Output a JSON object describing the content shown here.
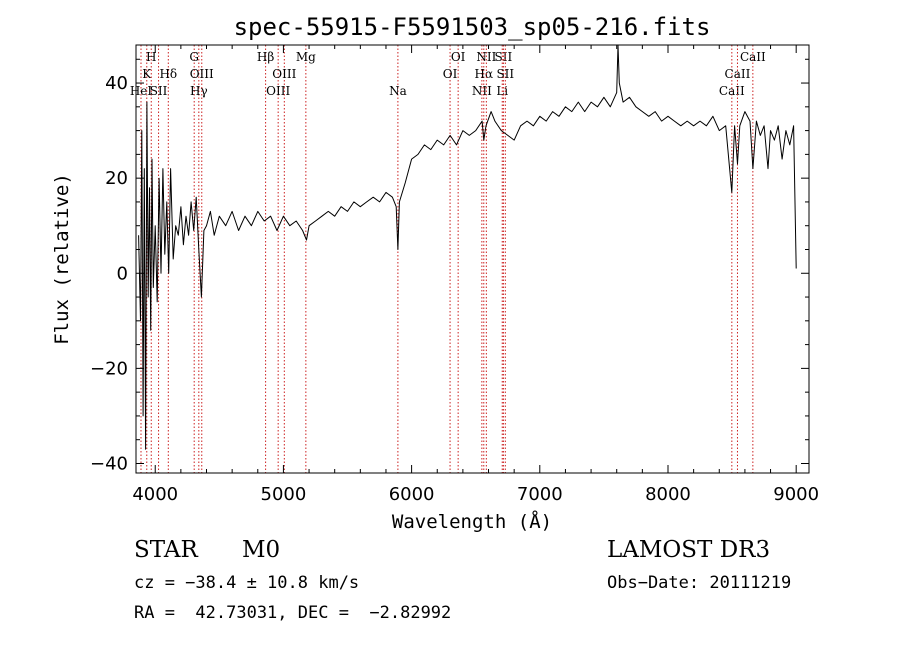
{
  "chart_data": {
    "type": "line",
    "title": "spec-55915-F5591503_sp05-216.fits",
    "xlabel": "Wavelength (Å)",
    "ylabel": "Flux (relative)",
    "xlim": [
      3850,
      9100
    ],
    "ylim": [
      -42,
      48
    ],
    "x_ticks": [
      4000,
      5000,
      6000,
      7000,
      8000,
      9000
    ],
    "y_ticks": [
      -40,
      -20,
      0,
      20,
      40
    ],
    "line_color": "#cc2222",
    "series": [
      {
        "name": "flux",
        "points": [
          [
            3870,
            8
          ],
          [
            3885,
            -10
          ],
          [
            3895,
            30
          ],
          [
            3905,
            -30
          ],
          [
            3915,
            22
          ],
          [
            3925,
            -37
          ],
          [
            3935,
            36
          ],
          [
            3945,
            -5
          ],
          [
            3955,
            18
          ],
          [
            3965,
            -12
          ],
          [
            3975,
            24
          ],
          [
            3985,
            -3
          ],
          [
            4000,
            10
          ],
          [
            4015,
            -6
          ],
          [
            4030,
            20
          ],
          [
            4045,
            0
          ],
          [
            4060,
            22
          ],
          [
            4075,
            4
          ],
          [
            4090,
            15
          ],
          [
            4105,
            0
          ],
          [
            4120,
            22
          ],
          [
            4140,
            3
          ],
          [
            4160,
            10
          ],
          [
            4180,
            8
          ],
          [
            4200,
            14
          ],
          [
            4220,
            6
          ],
          [
            4240,
            12
          ],
          [
            4260,
            8
          ],
          [
            4280,
            15
          ],
          [
            4300,
            9
          ],
          [
            4320,
            16
          ],
          [
            4340,
            5
          ],
          [
            4360,
            -5
          ],
          [
            4380,
            9
          ],
          [
            4400,
            10
          ],
          [
            4430,
            13
          ],
          [
            4460,
            8
          ],
          [
            4500,
            12
          ],
          [
            4550,
            10
          ],
          [
            4600,
            13
          ],
          [
            4650,
            9
          ],
          [
            4700,
            12
          ],
          [
            4750,
            10
          ],
          [
            4800,
            13
          ],
          [
            4850,
            11
          ],
          [
            4900,
            12
          ],
          [
            4950,
            9
          ],
          [
            5000,
            12
          ],
          [
            5050,
            10
          ],
          [
            5100,
            11
          ],
          [
            5150,
            9
          ],
          [
            5180,
            7
          ],
          [
            5200,
            10
          ],
          [
            5250,
            11
          ],
          [
            5300,
            12
          ],
          [
            5350,
            13
          ],
          [
            5400,
            12
          ],
          [
            5450,
            14
          ],
          [
            5500,
            13
          ],
          [
            5550,
            15
          ],
          [
            5600,
            14
          ],
          [
            5650,
            15
          ],
          [
            5700,
            16
          ],
          [
            5750,
            15
          ],
          [
            5800,
            17
          ],
          [
            5850,
            16
          ],
          [
            5880,
            14
          ],
          [
            5893,
            5
          ],
          [
            5905,
            15
          ],
          [
            5950,
            19
          ],
          [
            6000,
            24
          ],
          [
            6050,
            25
          ],
          [
            6100,
            27
          ],
          [
            6150,
            26
          ],
          [
            6200,
            28
          ],
          [
            6250,
            27
          ],
          [
            6300,
            29
          ],
          [
            6350,
            27
          ],
          [
            6400,
            30
          ],
          [
            6450,
            29
          ],
          [
            6500,
            30
          ],
          [
            6550,
            32
          ],
          [
            6563,
            28
          ],
          [
            6580,
            31
          ],
          [
            6620,
            34
          ],
          [
            6650,
            32
          ],
          [
            6700,
            30
          ],
          [
            6750,
            29
          ],
          [
            6800,
            28
          ],
          [
            6850,
            31
          ],
          [
            6900,
            32
          ],
          [
            6950,
            31
          ],
          [
            7000,
            33
          ],
          [
            7050,
            32
          ],
          [
            7100,
            34
          ],
          [
            7150,
            33
          ],
          [
            7200,
            35
          ],
          [
            7250,
            34
          ],
          [
            7300,
            36
          ],
          [
            7350,
            34
          ],
          [
            7400,
            36
          ],
          [
            7450,
            35
          ],
          [
            7500,
            37
          ],
          [
            7550,
            35
          ],
          [
            7600,
            38
          ],
          [
            7610,
            48
          ],
          [
            7620,
            40
          ],
          [
            7650,
            36
          ],
          [
            7700,
            37
          ],
          [
            7750,
            35
          ],
          [
            7800,
            34
          ],
          [
            7850,
            33
          ],
          [
            7900,
            34
          ],
          [
            7950,
            32
          ],
          [
            8000,
            33
          ],
          [
            8050,
            32
          ],
          [
            8100,
            31
          ],
          [
            8150,
            32
          ],
          [
            8200,
            31
          ],
          [
            8250,
            32
          ],
          [
            8300,
            31
          ],
          [
            8350,
            33
          ],
          [
            8400,
            30
          ],
          [
            8450,
            31
          ],
          [
            8498,
            17
          ],
          [
            8520,
            31
          ],
          [
            8542,
            23
          ],
          [
            8560,
            31
          ],
          [
            8600,
            34
          ],
          [
            8640,
            32
          ],
          [
            8662,
            22
          ],
          [
            8690,
            32
          ],
          [
            8720,
            29
          ],
          [
            8750,
            31
          ],
          [
            8780,
            22
          ],
          [
            8800,
            30
          ],
          [
            8830,
            28
          ],
          [
            8860,
            31
          ],
          [
            8890,
            24
          ],
          [
            8920,
            30
          ],
          [
            8950,
            27
          ],
          [
            8980,
            31
          ],
          [
            9000,
            1
          ]
        ]
      }
    ],
    "lines": [
      {
        "wl": 3889,
        "labels": [
          "HeI"
        ],
        "row": 2
      },
      {
        "wl": 3934,
        "labels": [
          "K"
        ],
        "row": 1
      },
      {
        "wl": 3969,
        "labels": [
          "H"
        ],
        "row": 0
      },
      {
        "wl": 4026,
        "labels": [
          "SII"
        ],
        "row": 2
      },
      {
        "wl": 4102,
        "labels": [
          "Hδ"
        ],
        "row": 1
      },
      {
        "wl": 4304,
        "labels": [
          "G"
        ],
        "row": 0
      },
      {
        "wl": 4340,
        "labels": [
          "Hγ"
        ],
        "row": 2
      },
      {
        "wl": 4363,
        "labels": [
          "OIII"
        ],
        "row": 1
      },
      {
        "wl": 4861,
        "labels": [
          "Hβ"
        ],
        "row": 0
      },
      {
        "wl": 4959,
        "labels": [
          "OIII"
        ],
        "row": 2
      },
      {
        "wl": 5007,
        "labels": [
          "OIII"
        ],
        "row": 1
      },
      {
        "wl": 5175,
        "labels": [
          "Mg"
        ],
        "row": 0
      },
      {
        "wl": 5893,
        "labels": [
          "Na"
        ],
        "row": 2
      },
      {
        "wl": 6300,
        "labels": [
          "OI"
        ],
        "row": 1
      },
      {
        "wl": 6363,
        "labels": [
          "OI"
        ],
        "row": 0
      },
      {
        "wl": 6548,
        "labels": [
          "NII"
        ],
        "row": 2
      },
      {
        "wl": 6563,
        "labels": [
          "Hα"
        ],
        "row": 1
      },
      {
        "wl": 6583,
        "labels": [
          "NII"
        ],
        "row": 0
      },
      {
        "wl": 6707,
        "labels": [
          "Li"
        ],
        "row": 2
      },
      {
        "wl": 6716,
        "labels": [
          "SII"
        ],
        "row": 0
      },
      {
        "wl": 6731,
        "labels": [
          "SII"
        ],
        "row": 1
      },
      {
        "wl": 8498,
        "labels": [
          "CaII"
        ],
        "row": 2
      },
      {
        "wl": 8542,
        "labels": [
          "CaII"
        ],
        "row": 1
      },
      {
        "wl": 8662,
        "labels": [
          "CaII"
        ],
        "row": 0
      }
    ]
  },
  "info": {
    "object_class": "STAR",
    "subclass": "M0",
    "survey": "LAMOST DR3",
    "redshift": "cz = −38.4 ± 10.8 km/s",
    "obs_date": "Obs−Date: 20111219",
    "coordinates": "RA =  42.73031, DEC =  −2.82992"
  }
}
